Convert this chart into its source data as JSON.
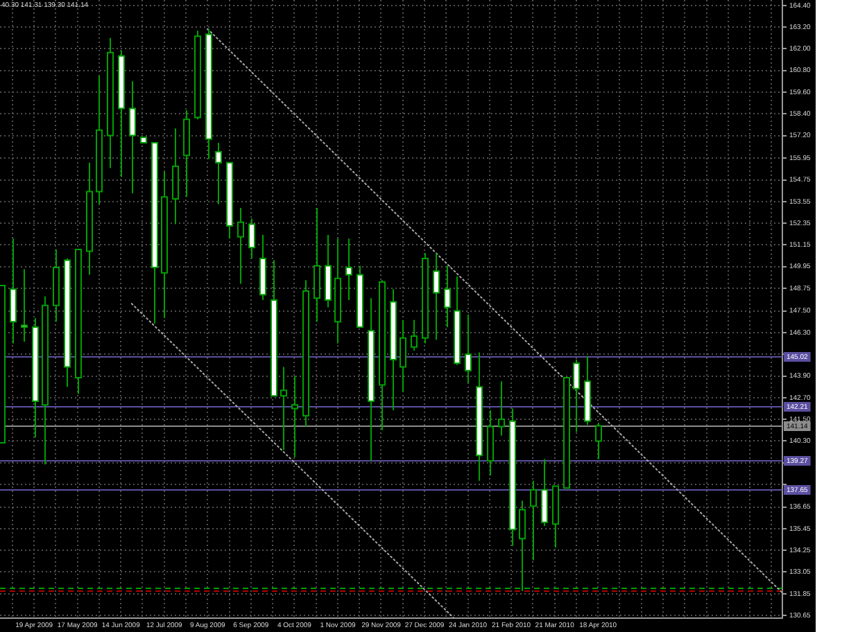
{
  "chart_data": {
    "type": "candlestick",
    "title": "40.30 141.31 139.30 141.14",
    "x": [
      "2009-03-29",
      "2009-04-05",
      "2009-04-12",
      "2009-04-19",
      "2009-04-26",
      "2009-05-03",
      "2009-05-10",
      "2009-05-17",
      "2009-05-24",
      "2009-05-31",
      "2009-06-07",
      "2009-06-14",
      "2009-06-21",
      "2009-06-28",
      "2009-07-05",
      "2009-07-12",
      "2009-07-19",
      "2009-07-26",
      "2009-08-02",
      "2009-08-09",
      "2009-08-16",
      "2009-08-23",
      "2009-08-30",
      "2009-09-06",
      "2009-09-13",
      "2009-09-20",
      "2009-09-27",
      "2009-10-04",
      "2009-10-11",
      "2009-10-18",
      "2009-10-25",
      "2009-11-01",
      "2009-11-08",
      "2009-11-15",
      "2009-11-22",
      "2009-11-29",
      "2009-12-06",
      "2009-12-13",
      "2009-12-20",
      "2009-12-27",
      "2010-01-03",
      "2010-01-10",
      "2010-01-17",
      "2010-01-24",
      "2010-01-31",
      "2010-02-07",
      "2010-02-14",
      "2010-02-21",
      "2010-02-28",
      "2010-03-07",
      "2010-03-14",
      "2010-03-21",
      "2010-03-28",
      "2010-04-04",
      "2010-04-11",
      "2010-04-18"
    ],
    "ohlc": [
      [
        140.2,
        148.9,
        140.2,
        148.9
      ],
      [
        148.7,
        151.5,
        145.7,
        146.9
      ],
      [
        146.7,
        149.8,
        145.8,
        146.6
      ],
      [
        146.6,
        147.1,
        140.5,
        142.5
      ],
      [
        142.3,
        148.3,
        139.0,
        147.8
      ],
      [
        147.8,
        150.9,
        146.9,
        149.9
      ],
      [
        150.3,
        150.4,
        143.3,
        144.4
      ],
      [
        143.8,
        150.9,
        142.9,
        150.9
      ],
      [
        150.8,
        155.7,
        149.5,
        154.1
      ],
      [
        154.1,
        160.5,
        153.4,
        157.5
      ],
      [
        157.2,
        162.6,
        155.4,
        161.8
      ],
      [
        161.6,
        161.9,
        154.9,
        158.7
      ],
      [
        158.7,
        160.2,
        154.0,
        157.2
      ],
      [
        157.1,
        157.1,
        156.8,
        156.8
      ],
      [
        156.8,
        156.8,
        146.8,
        149.9
      ],
      [
        149.6,
        155.2,
        147.1,
        153.8
      ],
      [
        153.7,
        157.6,
        152.3,
        155.5
      ],
      [
        156.1,
        158.6,
        153.8,
        158.1
      ],
      [
        158.2,
        163.0,
        158.1,
        162.7
      ],
      [
        162.8,
        163.1,
        155.9,
        157.0
      ],
      [
        156.3,
        156.8,
        153.4,
        155.7
      ],
      [
        155.7,
        155.7,
        151.5,
        152.2
      ],
      [
        151.6,
        153.2,
        149.0,
        152.4
      ],
      [
        152.3,
        152.6,
        150.4,
        151.0
      ],
      [
        150.4,
        151.7,
        148.1,
        148.4
      ],
      [
        148.1,
        150.3,
        142.8,
        142.8
      ],
      [
        142.8,
        144.4,
        139.8,
        143.1
      ],
      [
        142.1,
        143.9,
        139.4,
        142.3
      ],
      [
        141.7,
        149.2,
        141.1,
        148.6
      ],
      [
        148.2,
        153.2,
        146.9,
        150.0
      ],
      [
        150.0,
        151.7,
        147.7,
        148.1
      ],
      [
        146.9,
        151.5,
        145.7,
        149.3
      ],
      [
        149.9,
        151.5,
        148.1,
        149.5
      ],
      [
        149.5,
        150.0,
        146.6,
        146.6
      ],
      [
        146.4,
        148.2,
        139.2,
        142.5
      ],
      [
        143.4,
        149.2,
        140.9,
        149.1
      ],
      [
        148.0,
        148.7,
        142.0,
        144.8
      ],
      [
        144.4,
        147.0,
        143.0,
        146.0
      ],
      [
        145.5,
        147.0,
        145.3,
        146.1
      ],
      [
        146.0,
        150.7,
        145.7,
        150.4
      ],
      [
        149.7,
        150.7,
        145.9,
        148.5
      ],
      [
        148.7,
        150.0,
        146.6,
        147.7
      ],
      [
        147.5,
        149.4,
        144.5,
        144.6
      ],
      [
        145.1,
        147.3,
        143.5,
        144.2
      ],
      [
        143.3,
        145.2,
        138.1,
        139.5
      ],
      [
        139.2,
        142.0,
        138.4,
        141.1
      ],
      [
        141.1,
        143.6,
        140.6,
        141.5
      ],
      [
        141.4,
        142.1,
        134.5,
        135.4
      ],
      [
        134.9,
        137.0,
        132.0,
        136.5
      ],
      [
        136.7,
        138.1,
        133.7,
        137.6
      ],
      [
        137.6,
        139.3,
        135.6,
        135.8
      ],
      [
        135.7,
        137.8,
        134.4,
        137.8
      ],
      [
        137.7,
        143.8,
        137.7,
        143.8
      ],
      [
        144.6,
        144.8,
        140.8,
        143.2
      ],
      [
        143.6,
        145.0,
        141.2,
        141.4
      ],
      [
        140.3,
        141.31,
        139.3,
        141.14
      ]
    ],
    "color": "#00a000",
    "colors": [
      "#000000",
      "#ffffff",
      "#ffffff",
      "#ffffff",
      "#000000",
      "#000000",
      "#ffffff",
      "#000000",
      "#000000",
      "#000000",
      "#000000",
      "#ffffff",
      "#ffffff",
      "#ffffff",
      "#ffffff",
      "#000000",
      "#000000",
      "#000000",
      "#000000",
      "#ffffff",
      "#ffffff",
      "#ffffff",
      "#000000",
      "#ffffff",
      "#ffffff",
      "#ffffff",
      "#000000",
      "#000000",
      "#000000",
      "#000000",
      "#ffffff",
      "#000000",
      "#ffffff",
      "#ffffff",
      "#ffffff",
      "#000000",
      "#ffffff",
      "#000000",
      "#000000",
      "#000000",
      "#ffffff",
      "#ffffff",
      "#ffffff",
      "#ffffff",
      "#ffffff",
      "#000000",
      "#000000",
      "#ffffff",
      "#000000",
      "#000000",
      "#ffffff",
      "#000000",
      "#000000",
      "#ffffff",
      "#ffffff",
      "#000000"
    ],
    "series": [
      {
        "type": "line",
        "x": [
          "2009-08-09",
          "2010-08-15"
        ],
        "values": [
          163.1,
          131.9
        ],
        "color": "#a8a8a8",
        "line_style": "dotted"
      },
      {
        "type": "line",
        "x": [
          "2009-06-21",
          "2010-01-15"
        ],
        "values": [
          147.9,
          130.5
        ],
        "color": "#a8a8a8",
        "line_style": "dotted"
      }
    ],
    "ref_lines": [
      {
        "axis": "y",
        "value": 145.02,
        "label": "145.02",
        "color": "#5b4fa0"
      },
      {
        "axis": "y",
        "value": 142.21,
        "label": "142.21",
        "color": "#5b4fa0"
      },
      {
        "axis": "y",
        "value": 141.14,
        "label": "141.14",
        "color": "#8c8c8c"
      },
      {
        "axis": "y",
        "value": 139.27,
        "label": "139.27",
        "color": "#5b4fa0"
      },
      {
        "axis": "y",
        "value": 137.65,
        "label": "137.65",
        "color": "#5b4fa0"
      },
      {
        "axis": "y",
        "value": 132.2,
        "color": "#00a000",
        "line_style": "dashed"
      },
      {
        "axis": "y",
        "value": 132.0,
        "color": "#b00000",
        "line_style": "dashed"
      }
    ],
    "xlim": [
      "2009-03-28",
      "2010-08-15"
    ],
    "xticks": [
      {
        "value": "2009-04-05",
        "label": null
      },
      {
        "value": "2009-04-19",
        "label": "19 Apr 2009"
      },
      {
        "value": "2009-05-03",
        "label": null
      },
      {
        "value": "2009-05-17",
        "label": "17 May 2009"
      },
      {
        "value": "2009-05-31",
        "label": null
      },
      {
        "value": "2009-06-14",
        "label": "14 Jun 2009"
      },
      {
        "value": "2009-06-28",
        "label": null
      },
      {
        "value": "2009-07-12",
        "label": "12 Jul 2009"
      },
      {
        "value": "2009-07-26",
        "label": null
      },
      {
        "value": "2009-08-09",
        "label": "9 Aug 2009"
      },
      {
        "value": "2009-08-23",
        "label": null
      },
      {
        "value": "2009-09-06",
        "label": "6 Sep 2009"
      },
      {
        "value": "2009-09-20",
        "label": null
      },
      {
        "value": "2009-10-04",
        "label": "4 Oct 2009"
      },
      {
        "value": "2009-10-18",
        "label": null
      },
      {
        "value": "2009-11-01",
        "label": "1 Nov 2009"
      },
      {
        "value": "2009-11-15",
        "label": null
      },
      {
        "value": "2009-11-29",
        "label": "29 Nov 2009"
      },
      {
        "value": "2009-12-13",
        "label": null
      },
      {
        "value": "2009-12-27",
        "label": "27 Dec 2009"
      },
      {
        "value": "2010-01-10",
        "label": null
      },
      {
        "value": "2010-01-24",
        "label": "24 Jan 2010"
      },
      {
        "value": "2010-02-07",
        "label": null
      },
      {
        "value": "2010-02-21",
        "label": "21 Feb 2010"
      },
      {
        "value": "2010-03-07",
        "label": null
      },
      {
        "value": "2010-03-21",
        "label": "21 Mar 2010"
      },
      {
        "value": "2010-04-04",
        "label": null
      },
      {
        "value": "2010-04-18",
        "label": "18 Apr 2010"
      },
      {
        "value": "2010-05-02",
        "label": null
      },
      {
        "value": "2010-05-16",
        "label": null
      },
      {
        "value": "2010-05-30",
        "label": null
      },
      {
        "value": "2010-06-13",
        "label": null
      },
      {
        "value": "2010-06-27",
        "label": null
      },
      {
        "value": "2010-07-11",
        "label": null
      },
      {
        "value": "2010-07-25",
        "label": null
      },
      {
        "value": "2010-08-08",
        "label": null
      }
    ],
    "ylim": [
      130.5,
      164.7
    ],
    "yticks": [
      {
        "value": 164.4,
        "label": "164.40"
      },
      {
        "value": 163.2,
        "label": "163.20"
      },
      {
        "value": 162.0,
        "label": "162.00"
      },
      {
        "value": 160.8,
        "label": "160.80"
      },
      {
        "value": 159.6,
        "label": "159.60"
      },
      {
        "value": 158.4,
        "label": "158.40"
      },
      {
        "value": 157.2,
        "label": "157.20"
      },
      155.95,
      154.75,
      153.55,
      152.35,
      151.15,
      149.95,
      148.75,
      {
        "value": 147.5,
        "label": "147.50"
      },
      {
        "value": 146.3,
        "label": "146.30"
      },
      {
        "value": 145.1,
        "label": null
      },
      {
        "value": 143.9,
        "label": "143.90"
      },
      {
        "value": 142.7,
        "label": "142.70"
      },
      {
        "value": 141.5,
        "label": "141.50"
      },
      {
        "value": 140.3,
        "label": "140.30"
      },
      {
        "value": 139.1,
        "label": null
      },
      {
        "value": 137.9,
        "label": null
      },
      136.65,
      135.45,
      134.25,
      133.05,
      131.85,
      130.65
    ],
    "grid": true
  }
}
